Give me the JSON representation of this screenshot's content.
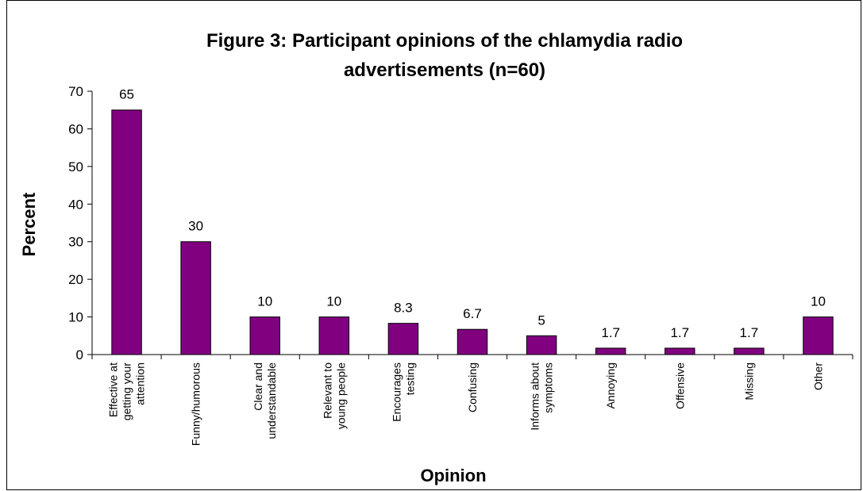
{
  "chart_data": {
    "type": "bar",
    "title": "Figure 3: Participant opinions of the chlamydia radio advertisements (n=60)",
    "title_lines": [
      "Figure 3: Participant opinions of the chlamydia radio",
      "advertisements (n=60)"
    ],
    "xlabel": "Opinion",
    "ylabel": "Percent",
    "ylim": [
      0,
      70
    ],
    "yticks": [
      "0",
      "10",
      "20",
      "30",
      "40",
      "50",
      "60",
      "70"
    ],
    "grid": false,
    "legend": "none",
    "bar_color": "#800080",
    "categories": [
      [
        "Effective at",
        "getting your",
        "attention"
      ],
      [
        "Funny/humorous"
      ],
      [
        "Clear and",
        "understandable"
      ],
      [
        "Relevant to",
        "young people"
      ],
      [
        "Encourages",
        "testing"
      ],
      [
        "Confusing"
      ],
      [
        "Informs about",
        "symptoms"
      ],
      [
        "Annoying"
      ],
      [
        "Offensive"
      ],
      [
        "Missing"
      ],
      [
        "Other"
      ]
    ],
    "values": [
      65,
      30,
      10,
      10,
      8.3,
      6.7,
      5,
      1.7,
      1.7,
      1.7,
      10
    ],
    "data_labels": [
      "65",
      "30",
      "10",
      "10",
      "8.3",
      "6.7",
      "5",
      "1.7",
      "1.7",
      "1.7",
      "10"
    ]
  }
}
